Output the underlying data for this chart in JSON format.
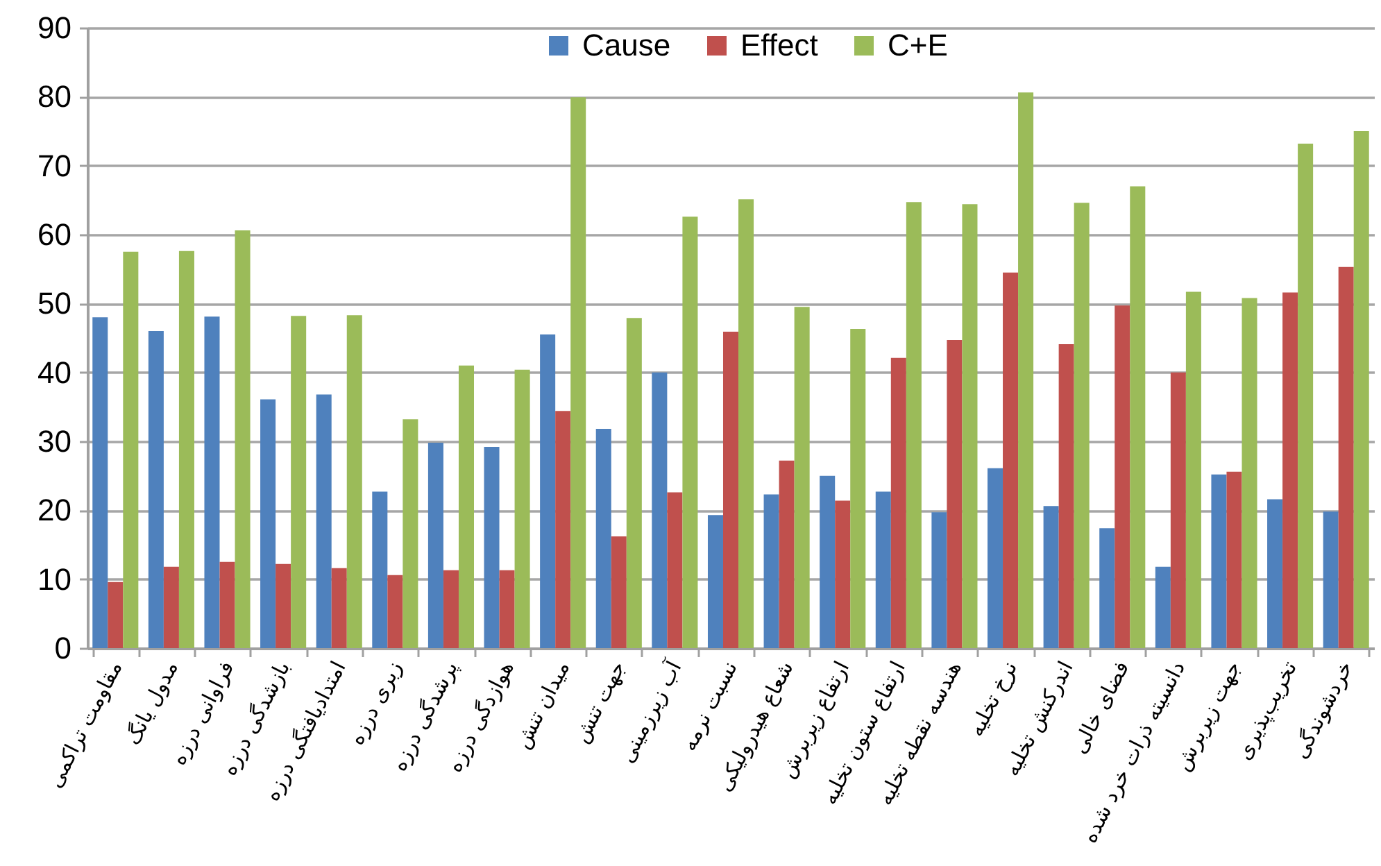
{
  "chart_data": {
    "type": "bar",
    "categories": [
      "مقاومت تراکمی",
      "مدول یانگ",
      "فراوانی درزه",
      "بازشدگی درزه",
      "امتدادیافتگی درزه",
      "زبری درزه",
      "پرشدگی درزه",
      "هوازدگی درزه",
      "میدان تنش",
      "جهت تنش",
      "آب زیرزمینی",
      "نسبت نرمه",
      "شعاع هیدرولیکی",
      "ارتفاع زیربرش",
      "ارتفاع ستون تخلیه",
      "هندسه نقطه تخلیه",
      "نرخ تخلیه",
      "اندرکنش تخلیه",
      "فضای خالی",
      "دانسیته ذرات خرد شده",
      "جهت زیربرش",
      "تخریب‌پذیری",
      "خردشوندگی"
    ],
    "series": [
      {
        "name": "Cause",
        "color": "#4f81bd",
        "values": [
          48,
          46,
          48.1,
          36.1,
          36.8,
          22.7,
          29.8,
          29.2,
          45.5,
          31.8,
          40,
          19.3,
          22.3,
          25,
          22.7,
          19.7,
          26.1,
          20.6,
          17.4,
          11.8,
          25.2,
          21.6,
          19.8
        ]
      },
      {
        "name": "Effect",
        "color": "#c0504d",
        "values": [
          9.6,
          11.8,
          12.5,
          12.2,
          11.6,
          10.6,
          11.3,
          11.3,
          34.4,
          16.2,
          22.6,
          45.9,
          27.2,
          21.4,
          42.1,
          44.7,
          54.5,
          44.1,
          49.7,
          40,
          25.6,
          51.6,
          55.3
        ]
      },
      {
        "name": "C+E",
        "color": "#9bbb59",
        "values": [
          57.5,
          57.6,
          60.6,
          48.2,
          48.3,
          33.2,
          41,
          40.4,
          79.9,
          47.9,
          62.6,
          65.1,
          49.5,
          46.3,
          64.7,
          64.4,
          80.6,
          64.6,
          67,
          51.7,
          50.8,
          73.2,
          75
        ]
      }
    ],
    "ylim": [
      0,
      90
    ],
    "yticks": [
      0,
      10,
      20,
      30,
      40,
      50,
      60,
      70,
      80,
      90
    ],
    "grid": "y",
    "legend": "top"
  }
}
